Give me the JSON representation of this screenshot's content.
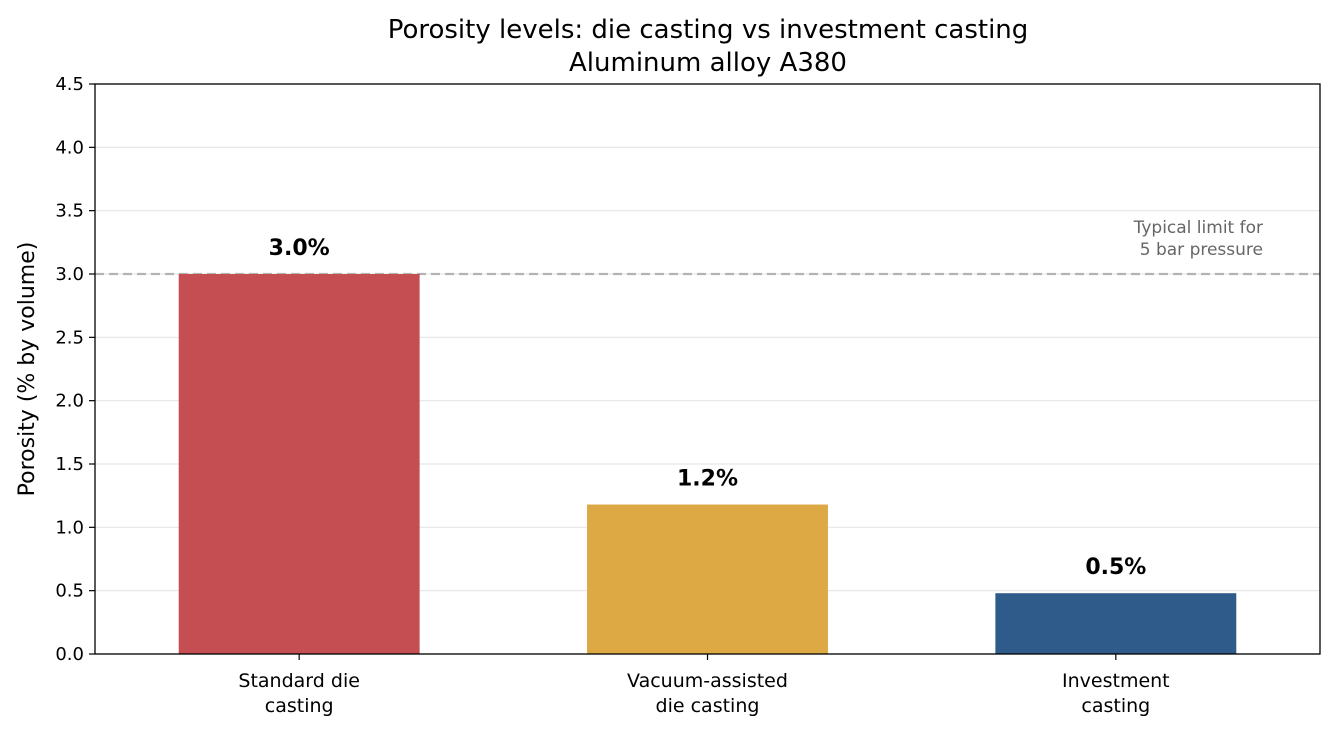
{
  "chart_data": {
    "type": "bar",
    "title": "Porosity levels: die casting vs investment casting",
    "subtitle": "Aluminum alloy A380",
    "ylabel": "Porosity (% by volume)",
    "xlabel": "",
    "categories": [
      [
        "Standard die",
        "casting"
      ],
      [
        "Vacuum-assisted",
        "die casting"
      ],
      [
        "Investment",
        "casting"
      ]
    ],
    "values": [
      3.0,
      1.18,
      0.48
    ],
    "data_labels": [
      "3.0%",
      "1.2%",
      "0.5%"
    ],
    "colors": [
      "#c44e52",
      "#dda944",
      "#2e5b8a"
    ],
    "ylim": [
      0,
      4.5
    ],
    "yticks": [
      0.0,
      0.5,
      1.0,
      1.5,
      2.0,
      2.5,
      3.0,
      3.5,
      4.0,
      4.5
    ],
    "ytick_labels": [
      "0.0",
      "0.5",
      "1.0",
      "1.5",
      "2.0",
      "2.5",
      "3.0",
      "3.5",
      "4.0",
      "4.5"
    ],
    "grid": "horizontal",
    "reference_line": {
      "value": 3.0,
      "style": "dashed",
      "color": "#b3b3b3",
      "label": [
        "Typical limit for",
        "5 bar pressure"
      ]
    }
  }
}
